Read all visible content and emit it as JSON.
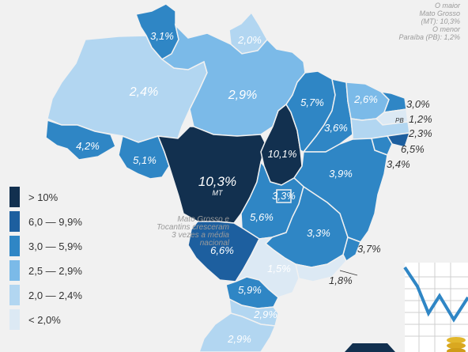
{
  "colors": {
    "background": "#f1f1f1",
    "bin_lt2": "#dce9f4",
    "bin_2_24": "#b2d6f1",
    "bin_25_29": "#7bbae8",
    "bin_3_59": "#2f86c5",
    "bin_6_99": "#1d5f9f",
    "bin_gt10": "#12304f"
  },
  "notes": {
    "top": [
      "O maior",
      "Mato Grosso",
      "(MT): 10,3%",
      "O menor",
      "Paraíba (PB): 1,2%"
    ],
    "middle": [
      "Mato Grosso e",
      "Tocantins cresceram",
      "3 vezes a média",
      "nacional"
    ]
  },
  "legend": [
    {
      "label": "> 10%",
      "color": "#12304f"
    },
    {
      "label": "6,0 — 9,9%",
      "color": "#1d5f9f"
    },
    {
      "label": "3,0 — 5,9%",
      "color": "#2f86c5"
    },
    {
      "label": "2,5 — 2,9%",
      "color": "#7bbae8"
    },
    {
      "label": "2,0 — 2,4%",
      "color": "#b2d6f1"
    },
    {
      "label": "< 2,0%",
      "color": "#dce9f4"
    }
  ],
  "states": {
    "RR": "3,1%",
    "AP": "2,0%",
    "AM": "2,4%",
    "PA": "2,9%",
    "AC": "4,2%",
    "RO": "5,1%",
    "MT": "10,3%",
    "MT_sub": "MT",
    "TO": "10,1%",
    "MA": "5,7%",
    "PI": "3,6%",
    "CE": "2,6%",
    "RN": "3,0%",
    "PB": "1,2%",
    "PB_abbr": "PB",
    "PE": "2,3%",
    "AL": "6,5%",
    "SE": "3,4%",
    "BA": "3,9%",
    "GO": "5,6%",
    "DF": "3,3%",
    "MG": "3,3%",
    "ES": "3,7%",
    "MS": "6,6%",
    "RJ": "1,8%",
    "SP": "1,5%",
    "PR": "5,9%",
    "SC": "2,9%",
    "RS": "2,9%"
  }
}
